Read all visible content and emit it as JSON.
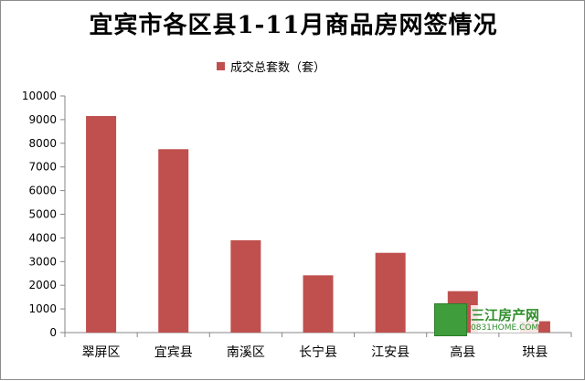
{
  "chart_data": {
    "type": "bar",
    "title": "宜宾市各区县1-11月商品房网签情况",
    "categories": [
      "翠屏区",
      "宜宾县",
      "南溪区",
      "长宁县",
      "江安县",
      "高县",
      "珙县"
    ],
    "series": [
      {
        "name": "成交总套数（套）",
        "values": [
          9150,
          7750,
          3900,
          2420,
          3370,
          1750,
          480
        ]
      }
    ],
    "ylim": [
      0,
      10000
    ],
    "yticks": [
      0,
      1000,
      2000,
      3000,
      4000,
      5000,
      6000,
      7000,
      8000,
      9000,
      10000
    ],
    "legend_position": "top",
    "grid": false,
    "bar_color": "#c0504d"
  },
  "watermark": {
    "text": "三江房产网",
    "sub": "0831HOME.COM"
  }
}
